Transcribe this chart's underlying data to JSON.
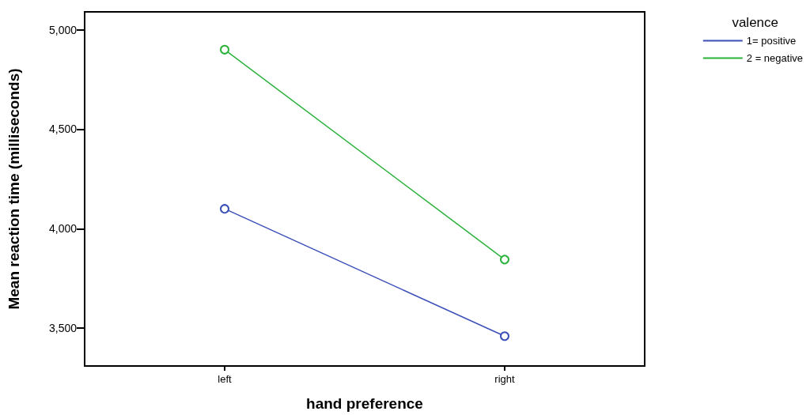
{
  "chart_data": {
    "type": "line",
    "xlabel": "hand preference",
    "ylabel": "Mean reaction time (milliseconds)",
    "legend_title": "valence",
    "categories": [
      "left",
      "right"
    ],
    "series": [
      {
        "name": "1= positive",
        "color": "#3b4fb8",
        "values": [
          4100,
          3460
        ]
      },
      {
        "name": "2 = negative",
        "color": "#2ab33a",
        "values": [
          4900,
          3845
        ]
      }
    ],
    "ylim": [
      3310,
      5090
    ],
    "yticks": [
      {
        "value": 3500,
        "label": "3,500"
      },
      {
        "value": 4000,
        "label": "4,000"
      },
      {
        "value": 4500,
        "label": "4,500"
      },
      {
        "value": 5000,
        "label": "5,000"
      }
    ],
    "grid": false,
    "legend": "top right",
    "marker": "circle",
    "line_style": "solid"
  }
}
